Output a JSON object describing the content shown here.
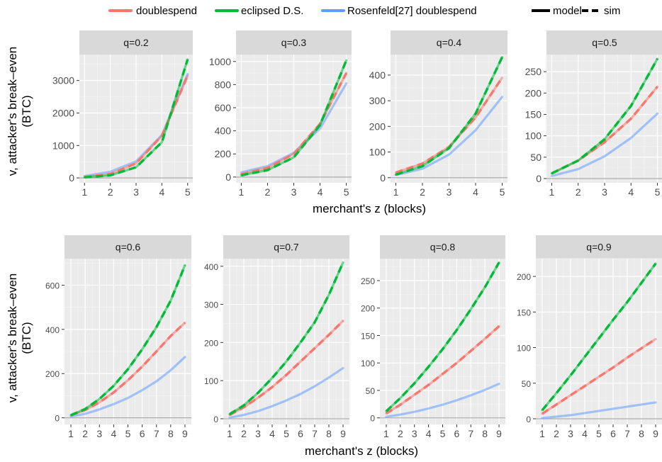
{
  "legend": {
    "colors": [
      {
        "label": "doublespend",
        "color": "#F8766D"
      },
      {
        "label": "eclipsed D.S.",
        "color": "#00BA38"
      },
      {
        "label": "Rosenfeld[27] doublespend",
        "color": "#619CFF"
      }
    ],
    "linetypes": [
      {
        "label": "model",
        "dash": "solid"
      },
      {
        "label": "sim",
        "dash": "dashed"
      }
    ]
  },
  "y_axis_title": [
    "v, attacker's break–even",
    "(BTC)"
  ],
  "x_axis_title": "merchant's z (blocks)",
  "chart_data": [
    {
      "type": "line",
      "facet": "q=0.2",
      "x": [
        1,
        2,
        3,
        4,
        5
      ],
      "ylim": [
        -150,
        3800
      ],
      "yticks": [
        0,
        1000,
        2000,
        3000
      ],
      "series": [
        {
          "name": "doublespend",
          "values": [
            30,
            120,
            450,
            1300,
            3150
          ]
        },
        {
          "name": "eclipsed D.S.",
          "values": [
            20,
            80,
            330,
            1100,
            3650
          ]
        },
        {
          "name": "Rosenfeld[27] doublespend",
          "values": [
            60,
            190,
            510,
            1320,
            3200
          ]
        }
      ]
    },
    {
      "type": "line",
      "facet": "q=0.3",
      "x": [
        1,
        2,
        3,
        4,
        5
      ],
      "ylim": [
        -50,
        1060
      ],
      "yticks": [
        0,
        200,
        400,
        600,
        800,
        1000
      ],
      "series": [
        {
          "name": "doublespend",
          "values": [
            25,
            80,
            200,
            460,
            900
          ]
        },
        {
          "name": "eclipsed D.S.",
          "values": [
            15,
            60,
            170,
            450,
            1010
          ]
        },
        {
          "name": "Rosenfeld[27] doublespend",
          "values": [
            40,
            95,
            210,
            420,
            810
          ]
        }
      ]
    },
    {
      "type": "line",
      "facet": "q=0.4",
      "x": [
        1,
        2,
        3,
        4,
        5
      ],
      "ylim": [
        -20,
        480
      ],
      "yticks": [
        0,
        100,
        200,
        300,
        400
      ],
      "series": [
        {
          "name": "doublespend",
          "values": [
            20,
            55,
            120,
            235,
            390
          ]
        },
        {
          "name": "eclipsed D.S.",
          "values": [
            12,
            45,
            115,
            250,
            470
          ]
        },
        {
          "name": "Rosenfeld[27] doublespend",
          "values": [
            10,
            35,
            90,
            185,
            315
          ]
        }
      ]
    },
    {
      "type": "line",
      "facet": "q=0.5",
      "x": [
        1,
        2,
        3,
        4,
        5
      ],
      "ylim": [
        -10,
        290
      ],
      "yticks": [
        0,
        50,
        100,
        150,
        200,
        250
      ],
      "series": [
        {
          "name": "doublespend",
          "values": [
            12,
            42,
            85,
            140,
            215
          ]
        },
        {
          "name": "eclipsed D.S.",
          "values": [
            12,
            42,
            92,
            170,
            280
          ]
        },
        {
          "name": "Rosenfeld[27] doublespend",
          "values": [
            6,
            22,
            52,
            95,
            152
          ]
        }
      ]
    },
    {
      "type": "line",
      "facet": "q=0.6",
      "x": [
        1,
        2,
        3,
        4,
        5,
        6,
        7,
        8,
        9
      ],
      "ylim": [
        -30,
        720
      ],
      "yticks": [
        0,
        200,
        400,
        600
      ],
      "series": [
        {
          "name": "doublespend",
          "values": [
            12,
            35,
            70,
            115,
            170,
            232,
            300,
            370,
            430
          ]
        },
        {
          "name": "eclipsed D.S.",
          "values": [
            12,
            40,
            85,
            145,
            220,
            310,
            410,
            530,
            690
          ]
        },
        {
          "name": "Rosenfeld[27] doublespend",
          "values": [
            6,
            18,
            38,
            62,
            90,
            125,
            165,
            215,
            275
          ]
        }
      ]
    },
    {
      "type": "line",
      "facet": "q=0.7",
      "x": [
        1,
        2,
        3,
        4,
        5,
        6,
        7,
        8,
        9
      ],
      "ylim": [
        -15,
        420
      ],
      "yticks": [
        0,
        100,
        200,
        300,
        400
      ],
      "series": [
        {
          "name": "doublespend",
          "values": [
            10,
            30,
            55,
            83,
            115,
            150,
            185,
            220,
            257
          ]
        },
        {
          "name": "eclipsed D.S.",
          "values": [
            12,
            35,
            68,
            107,
            150,
            200,
            253,
            325,
            410
          ]
        },
        {
          "name": "Rosenfeld[27] doublespend",
          "values": [
            3,
            10,
            20,
            33,
            48,
            65,
            85,
            108,
            133
          ]
        }
      ]
    },
    {
      "type": "line",
      "facet": "q=0.8",
      "x": [
        1,
        2,
        3,
        4,
        5,
        6,
        7,
        8,
        9
      ],
      "ylim": [
        -12,
        290
      ],
      "yticks": [
        0,
        50,
        100,
        150,
        200,
        250
      ],
      "series": [
        {
          "name": "doublespend",
          "values": [
            8,
            24,
            42,
            60,
            80,
            100,
            122,
            144,
            167
          ]
        },
        {
          "name": "eclipsed D.S.",
          "values": [
            12,
            36,
            63,
            93,
            125,
            160,
            198,
            238,
            283
          ]
        },
        {
          "name": "Rosenfeld[27] doublespend",
          "values": [
            2,
            6,
            11,
            17,
            24,
            32,
            41,
            51,
            62
          ]
        }
      ]
    },
    {
      "type": "line",
      "facet": "q=0.9",
      "x": [
        1,
        2,
        3,
        4,
        5,
        6,
        7,
        8,
        9
      ],
      "ylim": [
        -8,
        225
      ],
      "yticks": [
        0,
        50,
        100,
        150,
        200
      ],
      "series": [
        {
          "name": "doublespend",
          "values": [
            7,
            20,
            33,
            46,
            59,
            72,
            86,
            99,
            112
          ]
        },
        {
          "name": "eclipsed D.S.",
          "values": [
            12,
            36,
            61,
            87,
            113,
            139,
            164,
            191,
            218
          ]
        },
        {
          "name": "Rosenfeld[27] doublespend",
          "values": [
            1,
            3,
            5,
            8,
            11,
            14,
            17,
            20,
            23
          ]
        }
      ]
    }
  ]
}
